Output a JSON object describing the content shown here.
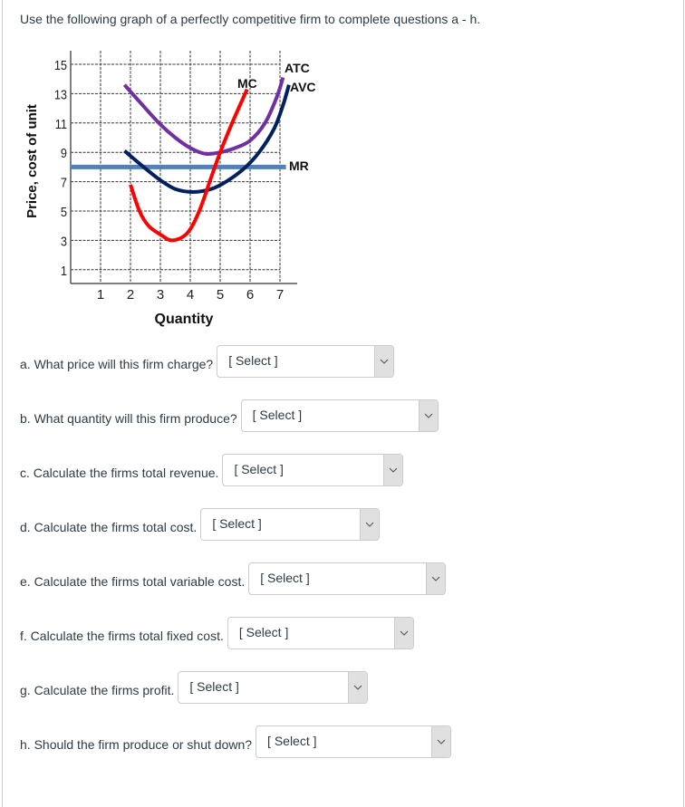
{
  "intro": "Use the following graph of a perfectly competitive firm to complete questions a - h.",
  "colors": {
    "atc": "#7030a0",
    "avc": "#002060",
    "mc": "#ff0000",
    "mr": "#4f81bd",
    "grid": "#000000",
    "text": "#2d3b45"
  },
  "chart_data": {
    "type": "line",
    "title": "",
    "xlabel": "Quantity",
    "ylabel": "Price, cost of unit",
    "xticks": [
      1,
      2,
      3,
      4,
      5,
      6,
      7
    ],
    "yticks": [
      1,
      3,
      5,
      7,
      9,
      11,
      13,
      15
    ],
    "xlim": [
      0,
      7.6
    ],
    "ylim": [
      0.1,
      16
    ],
    "grid": true,
    "legend_position": "inline labels at curve ends",
    "series": [
      {
        "name": "ATC",
        "color": "#7030a0",
        "points": [
          [
            1.8,
            13.6
          ],
          [
            2.5,
            12.0
          ],
          [
            3.0,
            10.9
          ],
          [
            3.5,
            10.0
          ],
          [
            4.0,
            9.3
          ],
          [
            4.5,
            8.9
          ],
          [
            5.0,
            9.0
          ],
          [
            5.5,
            9.3
          ],
          [
            6.0,
            9.8
          ],
          [
            6.5,
            11.0
          ],
          [
            6.9,
            12.8
          ],
          [
            7.1,
            14.1
          ]
        ]
      },
      {
        "name": "AVC",
        "color": "#002060",
        "points": [
          [
            1.8,
            9.1
          ],
          [
            2.5,
            7.9
          ],
          [
            3.0,
            7.1
          ],
          [
            3.5,
            6.5
          ],
          [
            4.1,
            6.3
          ],
          [
            4.7,
            6.5
          ],
          [
            5.2,
            7.0
          ],
          [
            5.8,
            7.9
          ],
          [
            6.3,
            9.0
          ],
          [
            6.8,
            10.6
          ],
          [
            7.1,
            12.2
          ],
          [
            7.3,
            13.6
          ]
        ]
      },
      {
        "name": "MC",
        "color": "#ff0000",
        "points": [
          [
            2.0,
            6.8
          ],
          [
            2.3,
            5.0
          ],
          [
            2.6,
            4.0
          ],
          [
            3.0,
            3.4
          ],
          [
            3.4,
            3.0
          ],
          [
            3.9,
            3.5
          ],
          [
            4.3,
            5.0
          ],
          [
            4.7,
            7.3
          ],
          [
            5.0,
            9.0
          ],
          [
            5.4,
            11.0
          ],
          [
            5.9,
            13.3
          ]
        ]
      },
      {
        "name": "MR",
        "color": "#4f81bd",
        "points": [
          [
            0,
            8
          ],
          [
            7.2,
            8
          ]
        ]
      }
    ],
    "labels": {
      "atc": "ATC",
      "avc": "AVC",
      "mc": "MC",
      "mr": "MR"
    }
  },
  "questions": [
    {
      "label": "a. What price will this firm charge?",
      "value": "[ Select ]"
    },
    {
      "label": "b. What quantity will this firm produce?",
      "value": "[ Select ]"
    },
    {
      "label": "c. Calculate the firms total revenue.",
      "value": "[ Select ]"
    },
    {
      "label": "d. Calculate the firms total cost.",
      "value": "[ Select ]"
    },
    {
      "label": "e. Calculate the firms total variable cost.",
      "value": "[ Select ]"
    },
    {
      "label": "f. Calculate the firms total fixed cost.",
      "value": "[ Select ]"
    },
    {
      "label": "g. Calculate the firms profit.",
      "value": "[ Select ]"
    },
    {
      "label": "h. Should the firm produce or shut down?",
      "value": "[ Select ]"
    }
  ]
}
